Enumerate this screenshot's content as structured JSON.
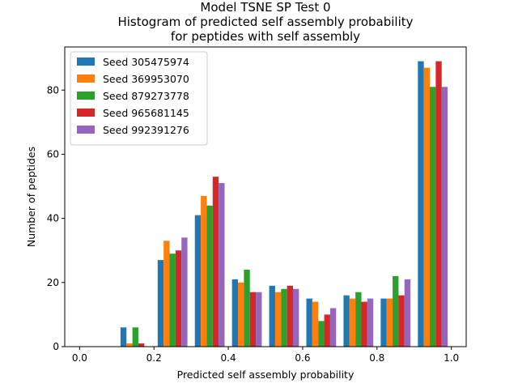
{
  "chart_data": {
    "type": "bar",
    "title_lines": [
      "Model TSNE SP Test 0",
      "Histogram of predicted self assembly probability",
      "for peptides with self assembly"
    ],
    "xlabel": "Predicted self assembly probability",
    "ylabel": "Number of peptides",
    "xlim": [
      -0.04,
      1.04
    ],
    "ylim": [
      0,
      93.45
    ],
    "xticks": [
      0.0,
      0.2,
      0.4,
      0.6,
      0.8,
      1.0
    ],
    "xtick_labels": [
      "0.0",
      "0.2",
      "0.4",
      "0.6",
      "0.8",
      "1.0"
    ],
    "yticks": [
      0,
      20,
      40,
      60,
      80
    ],
    "ytick_labels": [
      "0",
      "20",
      "40",
      "60",
      "80"
    ],
    "bin_edges": [
      0.0,
      0.1,
      0.2,
      0.3,
      0.4,
      0.5,
      0.6,
      0.7,
      0.8,
      0.9,
      1.0
    ],
    "legend_position": "upper-left",
    "grid": false,
    "series": [
      {
        "name": "Seed 305475974",
        "color": "#1f77b4",
        "values": [
          0,
          6,
          27,
          41,
          21,
          19,
          15,
          16,
          15,
          89
        ]
      },
      {
        "name": "Seed 369953070",
        "color": "#ff7f0e",
        "values": [
          0,
          1,
          33,
          47,
          20,
          17,
          14,
          15,
          15,
          87
        ]
      },
      {
        "name": "Seed 879273778",
        "color": "#2ca02c",
        "values": [
          0,
          6,
          29,
          44,
          24,
          18,
          8,
          17,
          22,
          81
        ]
      },
      {
        "name": "Seed 965681145",
        "color": "#d62728",
        "values": [
          0,
          1,
          30,
          53,
          17,
          19,
          10,
          14,
          16,
          89
        ]
      },
      {
        "name": "Seed 992391276",
        "color": "#9467bd",
        "values": [
          0,
          0,
          34,
          51,
          17,
          18,
          12,
          15,
          21,
          81
        ]
      }
    ]
  }
}
